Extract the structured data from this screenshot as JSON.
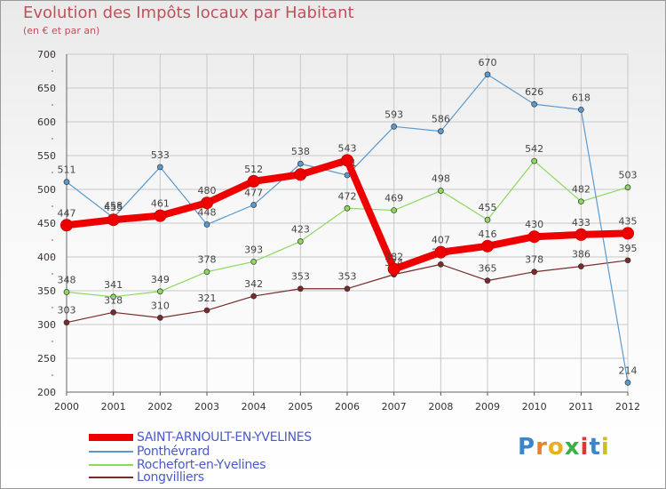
{
  "title": "Evolution des Impôts locaux par Habitant",
  "subtitle": "(en € et par an)",
  "logo": {
    "letters": [
      "P",
      "r",
      "o",
      "x",
      "i",
      "t",
      "i"
    ],
    "colors": [
      "#3a86c8",
      "#e8822a",
      "#e8b020",
      "#3ab04a",
      "#d83a3a",
      "#3a86c8",
      "#c8c020"
    ]
  },
  "chart_data": {
    "type": "line",
    "title": "Evolution des Impôts locaux par Habitant",
    "subtitle": "(en € et par an)",
    "xlabel": "",
    "ylabel": "",
    "ylim": [
      200,
      700
    ],
    "yticks": [
      "200",
      "250",
      "300",
      "350",
      "400",
      "450",
      "500",
      "550",
      "600",
      "650",
      "700"
    ],
    "x": [
      "2000",
      "2001",
      "2002",
      "2003",
      "2004",
      "2005",
      "2006",
      "2007",
      "2008",
      "2009",
      "2010",
      "2011",
      "2012"
    ],
    "grid": true,
    "series": [
      {
        "name": "SAINT-ARNOULT-EN-YVELINES",
        "color": "#ee0000",
        "values": [
          447,
          455,
          461,
          480,
          512,
          522,
          543,
          382,
          407,
          416,
          430,
          433,
          435
        ],
        "labels": [
          "447",
          "455",
          "461",
          "480",
          "512",
          "",
          "543",
          "382",
          "407",
          "416",
          "430",
          "433",
          "435"
        ]
      },
      {
        "name": "Ponthévrard",
        "color": "#5a9ad0",
        "values": [
          511,
          458,
          533,
          448,
          477,
          538,
          521,
          593,
          586,
          670,
          626,
          618,
          214
        ],
        "labels": [
          "511",
          "458",
          "533",
          "448",
          "477",
          "538",
          "521",
          "593",
          "586",
          "670",
          "626",
          "618",
          "214"
        ]
      },
      {
        "name": "Rochefort-en-Yvelines",
        "color": "#8cd860",
        "values": [
          348,
          341,
          349,
          378,
          393,
          423,
          472,
          469,
          498,
          455,
          542,
          482,
          503
        ],
        "labels": [
          "348",
          "341",
          "349",
          "378",
          "393",
          "423",
          "472",
          "469",
          "498",
          "455",
          "542",
          "482",
          "503"
        ]
      },
      {
        "name": "Longvilliers",
        "color": "#7a2a2a",
        "values": [
          303,
          318,
          310,
          321,
          342,
          353,
          353,
          374,
          389,
          365,
          378,
          386,
          395
        ],
        "labels": [
          "303",
          "318",
          "310",
          "321",
          "342",
          "353",
          "353",
          "374",
          "389",
          "365",
          "378",
          "386",
          "395"
        ]
      }
    ]
  }
}
